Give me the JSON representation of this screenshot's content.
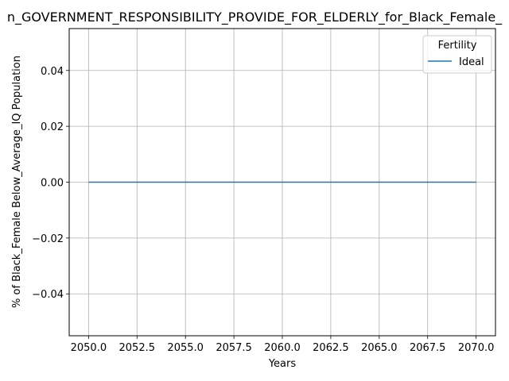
{
  "chart_data": {
    "type": "line",
    "title": "n_GOVERNMENT_RESPONSIBILITY_PROVIDE_FOR_ELDERLY_for_Black_Female_",
    "xlabel": "Years",
    "ylabel": "% of Black_Female Below_Average_IQ Population",
    "xlim": [
      2049,
      2071
    ],
    "ylim": [
      -0.055,
      0.055
    ],
    "x_ticks": [
      "2050.0",
      "2052.5",
      "2055.0",
      "2057.5",
      "2060.0",
      "2062.5",
      "2065.0",
      "2067.5",
      "2070.0"
    ],
    "y_ticks": [
      "0.04",
      "0.02",
      "0.00",
      "−0.02",
      "−0.04"
    ],
    "grid": true,
    "legend": {
      "title": "Fertility",
      "placement": "top-right"
    },
    "series": [
      {
        "name": "Ideal",
        "color": "#1f77b4",
        "x": [
          2050,
          2070
        ],
        "y": [
          0,
          0
        ]
      }
    ]
  }
}
